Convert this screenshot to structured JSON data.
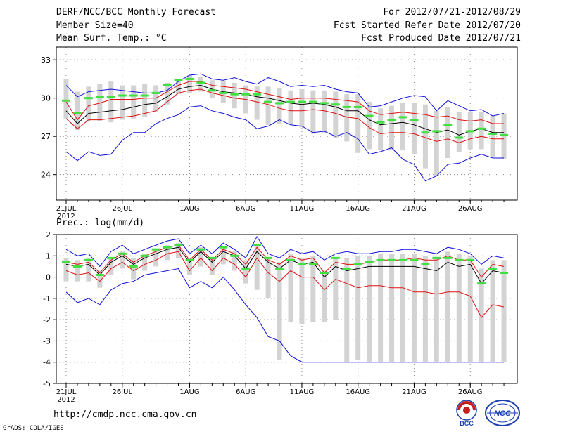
{
  "header": {
    "title": "DERF/NCC/BCC Monthly Forecast",
    "member_size": "Member Size=40",
    "variable": "Mean Surf. Temp.: °C",
    "forecast_period": "For 2012/07/21-2012/08/29",
    "start_refer_date": "Fcst Started Refer Date 2012/07/20",
    "produced_date": "Fcst Produced Date 2012/07/21"
  },
  "panel2_label": "Prec.: log(mm/d)",
  "footer": {
    "url": "http://cmdp.ncc.cma.gov.cn",
    "credit": "GrADS: COLA/IGES",
    "logo_left_text": "BCC",
    "logo_right_text": "NCC"
  },
  "colors": {
    "box": "#d3d3d3",
    "mean": "#000000",
    "spread": "#e01010",
    "envelope": "#1010e0",
    "obs": "#40e040"
  },
  "chart_data": [
    {
      "type": "box",
      "title": "Mean Surf. Temp.: °C",
      "x_tick_labels": [
        "21JUL",
        "26JUL",
        "1AUG",
        "6AUG",
        "11AUG",
        "16AUG",
        "21AUG",
        "26AUG"
      ],
      "x_tick_index": [
        0,
        5,
        11,
        16,
        21,
        26,
        31,
        36
      ],
      "year_label": "2012",
      "n_days": 40,
      "ylim": [
        22,
        34
      ],
      "yticks": [
        24,
        27,
        30,
        33
      ],
      "grid": true,
      "series": {
        "max": [
          31.0,
          30.1,
          30.5,
          30.6,
          30.7,
          30.6,
          30.5,
          30.4,
          30.4,
          30.6,
          31.3,
          31.8,
          31.9,
          31.5,
          31.4,
          31.6,
          31.3,
          31.1,
          31.6,
          31.3,
          30.9,
          31.0,
          30.9,
          31.0,
          30.7,
          30.5,
          30.4,
          29.3,
          29.4,
          29.7,
          30.0,
          30.2,
          30.1,
          29.0,
          29.8,
          29.4,
          29.0,
          29.1,
          28.6,
          28.8
        ],
        "spread_upper": [
          29.7,
          28.3,
          29.4,
          29.6,
          29.9,
          29.9,
          29.9,
          30.0,
          30.0,
          30.5,
          31.0,
          31.3,
          31.3,
          31.0,
          30.9,
          30.8,
          30.7,
          30.5,
          30.3,
          30.1,
          29.9,
          30.0,
          30.0,
          30.0,
          29.9,
          29.8,
          29.7,
          29.0,
          28.7,
          28.8,
          28.9,
          28.8,
          28.7,
          28.5,
          28.6,
          28.3,
          28.2,
          28.3,
          28.0,
          28.0
        ],
        "mean": [
          29.0,
          28.0,
          28.8,
          28.9,
          29.0,
          29.1,
          29.3,
          29.5,
          29.6,
          30.1,
          30.7,
          30.9,
          31.0,
          30.7,
          30.5,
          30.4,
          30.3,
          30.1,
          30.0,
          29.8,
          29.6,
          29.5,
          29.6,
          29.5,
          29.3,
          29.0,
          29.0,
          28.3,
          27.9,
          28.0,
          28.1,
          27.9,
          27.6,
          27.3,
          27.5,
          27.1,
          27.4,
          27.6,
          27.3,
          27.3
        ],
        "spread_lower": [
          28.4,
          27.6,
          28.3,
          28.3,
          28.4,
          28.5,
          28.6,
          28.8,
          29.0,
          29.7,
          30.4,
          30.6,
          30.7,
          30.4,
          30.2,
          30.0,
          29.9,
          29.7,
          29.5,
          29.2,
          29.0,
          29.0,
          29.1,
          29.0,
          28.8,
          28.5,
          28.4,
          27.7,
          27.2,
          27.3,
          27.3,
          27.2,
          26.9,
          26.6,
          26.8,
          26.5,
          26.8,
          27.0,
          26.8,
          26.8
        ],
        "min": [
          25.8,
          25.1,
          25.8,
          25.5,
          25.6,
          26.7,
          27.3,
          27.3,
          28.0,
          28.4,
          28.7,
          29.3,
          29.4,
          29.0,
          28.8,
          28.5,
          28.3,
          27.6,
          27.8,
          28.3,
          27.9,
          27.8,
          27.3,
          27.4,
          27.0,
          27.3,
          26.8,
          25.6,
          25.8,
          26.1,
          25.2,
          24.8,
          23.5,
          23.9,
          24.8,
          24.9,
          25.3,
          25.6,
          25.3,
          25.3
        ],
        "box_top": [
          31.5,
          30.5,
          30.9,
          31.1,
          31.3,
          31.0,
          31.0,
          31.1,
          31.0,
          31.2,
          31.5,
          31.8,
          31.7,
          31.4,
          31.3,
          31.2,
          31.0,
          30.9,
          30.9,
          30.8,
          30.6,
          30.7,
          30.6,
          30.6,
          30.5,
          30.3,
          30.3,
          29.7,
          29.2,
          29.4,
          29.6,
          29.6,
          29.5,
          29.0,
          29.3,
          28.9,
          28.9,
          28.9,
          28.6,
          28.8
        ],
        "box_bottom": [
          28.4,
          27.5,
          28.2,
          28.2,
          28.1,
          28.3,
          28.4,
          28.5,
          28.9,
          29.5,
          30.3,
          30.4,
          30.5,
          30.0,
          29.6,
          29.2,
          28.8,
          28.3,
          27.9,
          28.0,
          27.9,
          27.7,
          27.2,
          27.3,
          26.9,
          26.6,
          25.7,
          26.0,
          25.9,
          25.9,
          25.9,
          25.6,
          24.5,
          23.9,
          25.3,
          25.8,
          26.0,
          26.0,
          25.4,
          25.2
        ],
        "observed": [
          29.8,
          28.8,
          30.0,
          30.1,
          30.1,
          30.2,
          30.2,
          30.2,
          30.4,
          31.0,
          31.4,
          31.5,
          31.2,
          30.6,
          30.4,
          30.3,
          30.3,
          30.3,
          29.7,
          29.6,
          29.7,
          29.7,
          29.7,
          29.6,
          29.5,
          29.3,
          29.3,
          28.6,
          28.1,
          28.3,
          28.5,
          28.3,
          27.3,
          27.4,
          27.9,
          26.9,
          27.4,
          27.6,
          27.2,
          27.1
        ]
      }
    },
    {
      "type": "box",
      "title": "Prec.: log(mm/d)",
      "x_tick_labels": [
        "21JUL",
        "26JUL",
        "1AUG",
        "6AUG",
        "11AUG",
        "16AUG",
        "21AUG",
        "26AUG"
      ],
      "x_tick_index": [
        0,
        5,
        11,
        16,
        21,
        26,
        31,
        36
      ],
      "year_label": "2012",
      "n_days": 40,
      "ylim": [
        -5,
        2
      ],
      "yticks": [
        -5,
        -4,
        -3,
        -2,
        -1,
        0,
        1,
        2
      ],
      "grid": true,
      "series": {
        "max": [
          1.3,
          1.0,
          1.1,
          0.5,
          1.2,
          1.5,
          1.1,
          1.3,
          1.5,
          1.7,
          1.8,
          1.1,
          1.5,
          1.1,
          1.6,
          1.3,
          0.9,
          1.9,
          1.1,
          0.9,
          1.3,
          1.1,
          1.2,
          0.8,
          1.1,
          1.2,
          1.1,
          1.1,
          1.2,
          1.2,
          1.3,
          1.3,
          1.2,
          1.1,
          1.4,
          1.3,
          1.1,
          0.6,
          1.0,
          0.9
        ],
        "spread_upper": [
          0.7,
          0.6,
          0.7,
          0.2,
          0.8,
          1.1,
          0.7,
          1.0,
          1.2,
          1.4,
          1.5,
          0.8,
          1.3,
          0.8,
          1.3,
          1.1,
          0.6,
          1.4,
          0.8,
          0.6,
          1.0,
          0.8,
          0.9,
          0.2,
          0.7,
          0.6,
          0.6,
          0.7,
          0.8,
          0.8,
          0.8,
          0.9,
          0.8,
          0.8,
          1.0,
          0.8,
          0.8,
          0.0,
          0.6,
          0.5
        ],
        "mean": [
          0.6,
          0.5,
          0.6,
          0.1,
          0.7,
          1.0,
          0.6,
          0.9,
          1.1,
          1.3,
          1.4,
          0.7,
          1.2,
          0.7,
          1.2,
          1.0,
          0.4,
          1.2,
          0.7,
          0.4,
          0.8,
          0.6,
          0.7,
          0.0,
          0.5,
          0.3,
          0.4,
          0.5,
          0.5,
          0.5,
          0.5,
          0.5,
          0.4,
          0.3,
          0.7,
          0.5,
          0.6,
          -0.3,
          0.3,
          0.2
        ],
        "spread_lower": [
          0.3,
          0.1,
          0.2,
          -0.2,
          0.4,
          0.7,
          0.3,
          0.6,
          0.8,
          1.1,
          1.2,
          0.3,
          0.9,
          0.3,
          0.9,
          0.6,
          0.0,
          0.9,
          0.2,
          -0.2,
          0.3,
          0.0,
          0.0,
          -0.6,
          -0.1,
          -0.3,
          -0.5,
          -0.4,
          -0.4,
          -0.5,
          -0.5,
          -0.7,
          -0.7,
          -0.8,
          -0.7,
          -0.7,
          -0.9,
          -1.9,
          -1.3,
          -1.4
        ],
        "min": [
          -0.7,
          -1.2,
          -1.0,
          -1.3,
          -0.6,
          -0.3,
          -0.2,
          0.1,
          0.2,
          0.3,
          0.4,
          -0.5,
          -0.2,
          -0.5,
          0.0,
          -0.6,
          -1.3,
          -1.9,
          -2.8,
          -3.0,
          -3.7,
          -4.0,
          -4.0,
          -4.0,
          -4.0,
          -4.0,
          -4.0,
          -4.0,
          -4.0,
          -4.0,
          -4.0,
          -4.0,
          -4.0,
          -4.0,
          -4.0,
          -4.0,
          -4.0,
          -4.0,
          -4.0,
          -4.0
        ],
        "box_top": [
          0.9,
          0.8,
          0.9,
          0.3,
          0.9,
          1.2,
          0.9,
          1.1,
          1.3,
          1.5,
          1.6,
          0.9,
          1.4,
          0.9,
          1.4,
          1.2,
          0.8,
          1.5,
          0.9,
          0.7,
          1.1,
          0.9,
          1.0,
          0.3,
          0.9,
          0.9,
          1.0,
          1.0,
          1.1,
          1.1,
          1.1,
          1.1,
          1.0,
          0.9,
          1.2,
          1.1,
          1.0,
          0.4,
          0.8,
          0.8
        ],
        "box_bottom": [
          -0.2,
          -0.2,
          -0.2,
          -0.5,
          0.1,
          0.4,
          -0.1,
          0.3,
          0.5,
          0.8,
          0.9,
          0.1,
          0.5,
          0.1,
          0.6,
          0.3,
          -0.3,
          -0.6,
          -1.0,
          -3.9,
          -2.1,
          -2.2,
          -2.1,
          -2.1,
          -2.0,
          -4.0,
          -3.9,
          -4.0,
          -4.0,
          -4.0,
          -4.0,
          -4.0,
          -4.0,
          -4.0,
          -4.0,
          -4.0,
          -4.0,
          -4.0,
          -4.0,
          -4.0
        ],
        "observed": [
          0.7,
          0.5,
          0.8,
          0.1,
          0.9,
          1.1,
          0.5,
          1.0,
          1.3,
          1.4,
          1.5,
          0.8,
          1.3,
          0.9,
          1.4,
          1.0,
          0.4,
          1.5,
          0.9,
          0.4,
          0.8,
          0.6,
          0.6,
          0.2,
          0.9,
          0.4,
          0.6,
          0.7,
          0.8,
          0.8,
          0.8,
          0.8,
          0.6,
          0.9,
          0.9,
          0.8,
          0.8,
          -0.3,
          0.4,
          0.2
        ]
      }
    }
  ]
}
